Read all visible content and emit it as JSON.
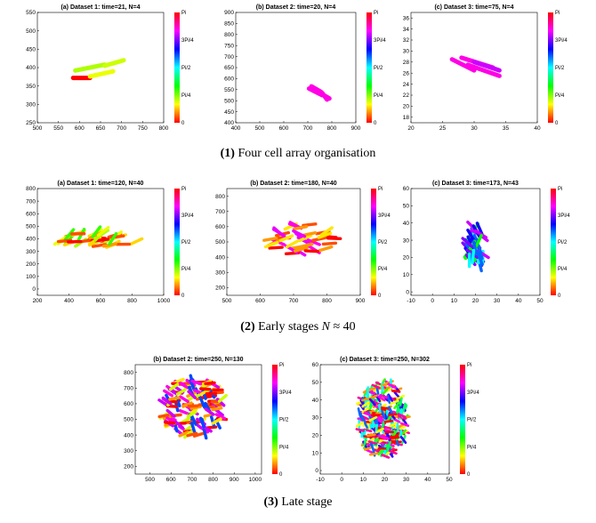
{
  "figure": {
    "captions": [
      {
        "num": "(1)",
        "text": " Four cell array organisation"
      },
      {
        "num": "(2)",
        "text": " Early stages ",
        "italic": "N",
        "rest": " ≈ 40"
      },
      {
        "num": "(3)",
        "text": " Late stage"
      }
    ]
  },
  "colorbar": {
    "labels": [
      "Pi",
      "3Pi/4",
      "Pi/2",
      "Pi/4",
      "0"
    ],
    "colors": [
      "#ff0000",
      "#ff8000",
      "#ffff00",
      "#80ff00",
      "#00ff00",
      "#00ff80",
      "#00ffff",
      "#0080ff",
      "#0000ff",
      "#8000ff",
      "#ff00ff",
      "#ff0080",
      "#ff0000"
    ]
  },
  "chart_data": [
    {
      "id": "p1a",
      "type": "scatter",
      "title": "(a) Dataset 1: time=21, N=4",
      "xlim": [
        500,
        800
      ],
      "ylim": [
        250,
        550
      ],
      "xticks": [
        500,
        550,
        600,
        650,
        700,
        750,
        800
      ],
      "yticks": [
        250,
        300,
        350,
        400,
        450,
        500,
        550
      ],
      "cells": [
        [
          590,
          392,
          660,
          408,
          0.22
        ],
        [
          585,
          372,
          625,
          372,
          0.0
        ],
        [
          625,
          376,
          680,
          390,
          0.18
        ],
        [
          660,
          405,
          705,
          420,
          0.2
        ]
      ]
    },
    {
      "id": "p1b",
      "type": "scatter",
      "title": "(b) Dataset 2: time=20, N=4",
      "xlim": [
        400,
        900
      ],
      "ylim": [
        400,
        900
      ],
      "xticks": [
        400,
        500,
        600,
        700,
        800,
        900
      ],
      "yticks": [
        400,
        450,
        500,
        550,
        600,
        650,
        700,
        750,
        800,
        850,
        900
      ],
      "cells": [
        [
          705,
          555,
          760,
          525,
          0.85
        ],
        [
          735,
          545,
          790,
          510,
          0.85
        ],
        [
          715,
          565,
          755,
          540,
          0.85
        ],
        [
          760,
          535,
          780,
          505,
          0.85
        ]
      ]
    },
    {
      "id": "p1c",
      "type": "scatter",
      "title": "(c) Dataset 3: time=75, N=4",
      "xlim": [
        20,
        40
      ],
      "ylim": [
        17,
        37
      ],
      "xticks": [
        20,
        25,
        30,
        35,
        40
      ],
      "yticks": [
        18,
        20,
        22,
        24,
        26,
        28,
        30,
        32,
        34,
        36
      ],
      "cells": [
        [
          26.5,
          28.5,
          30,
          26.5,
          0.85
        ],
        [
          29,
          27.5,
          34,
          25.5,
          0.85
        ],
        [
          28,
          28.8,
          33,
          27,
          0.85
        ],
        [
          30,
          28,
          34,
          26.5,
          0.8
        ]
      ]
    },
    {
      "id": "p2a",
      "type": "scatter",
      "title": "(a) Dataset 1: time=120, N=40",
      "xlim": [
        200,
        1000
      ],
      "ylim": [
        -50,
        800
      ],
      "xticks": [
        200,
        400,
        600,
        800,
        1000
      ],
      "yticks": [
        0,
        100,
        200,
        300,
        400,
        500,
        600,
        700,
        800
      ],
      "clusters": [
        [
          340,
          340,
          850,
          460,
          40,
          "mix1"
        ]
      ]
    },
    {
      "id": "p2b",
      "type": "scatter",
      "title": "(b) Dataset 2: time=180, N=40",
      "xlim": [
        500,
        900
      ],
      "ylim": [
        150,
        850
      ],
      "xticks": [
        500,
        600,
        700,
        800,
        900
      ],
      "yticks": [
        200,
        300,
        400,
        500,
        600,
        700,
        800
      ],
      "clusters": [
        [
          630,
          420,
          830,
          620,
          40,
          "mix2"
        ]
      ]
    },
    {
      "id": "p2c",
      "type": "scatter",
      "title": "(c) Dataset 3: time=173, N=43",
      "xlim": [
        -10,
        50
      ],
      "ylim": [
        -2,
        60
      ],
      "xticks": [
        -10,
        0,
        10,
        20,
        30,
        40,
        50
      ],
      "yticks": [
        0,
        10,
        20,
        30,
        40,
        50,
        60
      ],
      "clusters": [
        [
          16,
          14,
          24,
          40,
          43,
          "mix3"
        ]
      ]
    },
    {
      "id": "p3b",
      "type": "scatter",
      "title": "(b) Dataset 2: time=250, N=130",
      "xlim": [
        430,
        1030
      ],
      "ylim": [
        150,
        850
      ],
      "xticks": [
        500,
        600,
        700,
        800,
        900,
        1000
      ],
      "yticks": [
        200,
        300,
        400,
        500,
        600,
        700,
        800
      ],
      "clusters": [
        [
          560,
          400,
          850,
          760,
          130,
          "mix4"
        ]
      ]
    },
    {
      "id": "p3c",
      "type": "scatter",
      "title": "(c) Dataset 3: time=250, N=302",
      "xlim": [
        -10,
        50
      ],
      "ylim": [
        -2,
        60
      ],
      "xticks": [
        -10,
        0,
        10,
        20,
        30,
        40,
        50
      ],
      "yticks": [
        0,
        10,
        20,
        30,
        40,
        50,
        60
      ],
      "clusters": [
        [
          8,
          8,
          30,
          50,
          302,
          "mix5"
        ]
      ]
    }
  ]
}
